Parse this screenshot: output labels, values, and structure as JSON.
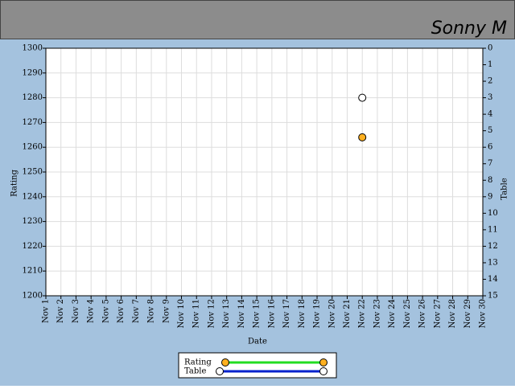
{
  "header": {
    "title": "Sonny M"
  },
  "chart_data": {
    "type": "line",
    "x_label": "Date",
    "y_label": "Rating",
    "y2_label": "Table",
    "categories": [
      "Nov 1",
      "Nov 2",
      "Nov 3",
      "Nov 4",
      "Nov 5",
      "Nov 6",
      "Nov 7",
      "Nov 8",
      "Nov 9",
      "Nov 10",
      "Nov 11",
      "Nov 12",
      "Nov 13",
      "Nov 14",
      "Nov 15",
      "Nov 16",
      "Nov 17",
      "Nov 18",
      "Nov 19",
      "Nov 20",
      "Nov 21",
      "Nov 22",
      "Nov 23",
      "Nov 24",
      "Nov 25",
      "Nov 26",
      "Nov 27",
      "Nov 28",
      "Nov 29",
      "Nov 30"
    ],
    "series": [
      {
        "name": "Rating",
        "color": "#22dd22",
        "marker_color": "#ffb020",
        "values": [
          null,
          null,
          null,
          null,
          null,
          null,
          null,
          null,
          null,
          null,
          null,
          null,
          null,
          null,
          null,
          null,
          null,
          null,
          null,
          null,
          null,
          1264,
          null,
          null,
          null,
          null,
          null,
          null,
          null,
          null
        ]
      },
      {
        "name": "Table",
        "color": "#0022cc",
        "marker_color": "#ffffff",
        "axis": "y2",
        "values": [
          null,
          null,
          null,
          null,
          null,
          null,
          null,
          null,
          null,
          null,
          null,
          null,
          null,
          null,
          null,
          null,
          null,
          null,
          null,
          null,
          null,
          3,
          null,
          null,
          null,
          null,
          null,
          null,
          null,
          null
        ]
      }
    ],
    "ylim": [
      1200,
      1300
    ],
    "yticks": [
      1200,
      1210,
      1220,
      1230,
      1240,
      1250,
      1260,
      1270,
      1280,
      1290,
      1300
    ],
    "y2lim": [
      15,
      0
    ],
    "y2ticks": [
      0,
      1,
      2,
      3,
      4,
      5,
      6,
      7,
      8,
      9,
      10,
      11,
      12,
      13,
      14,
      15
    ],
    "grid": true
  }
}
